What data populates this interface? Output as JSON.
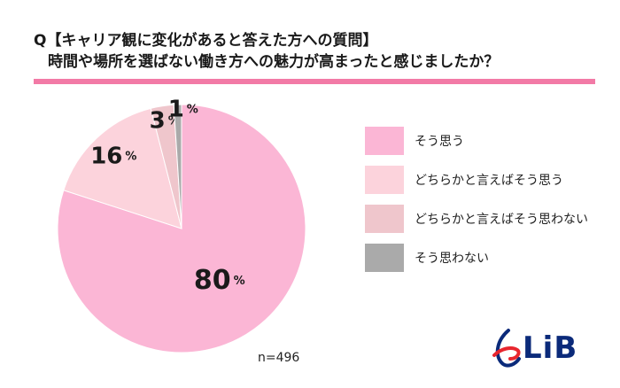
{
  "header": {
    "title_line1": "Q【キャリア観に変化があると答えた方への質問】",
    "title_line2": "時間や場所を選ばない働き方への魅力が高まったと感じましたか？"
  },
  "chart_data": {
    "type": "pie",
    "unit": "%",
    "slices": [
      {
        "label": "そう思う",
        "value": 80,
        "color": "#fbb6d5"
      },
      {
        "label": "どちらかと言えばそう思う",
        "value": 16,
        "color": "#fcd3dc"
      },
      {
        "label": "どちらかと言えばそう思わない",
        "value": 3,
        "color": "#efc6cc"
      },
      {
        "label": "そう思わない",
        "value": 1,
        "color": "#aaaaaa"
      }
    ],
    "legend_placement": "right",
    "n_label": "n=496"
  },
  "logo": {
    "text": "LiB",
    "color_blue": "#0b2a7a",
    "color_red": "#e8262e"
  }
}
